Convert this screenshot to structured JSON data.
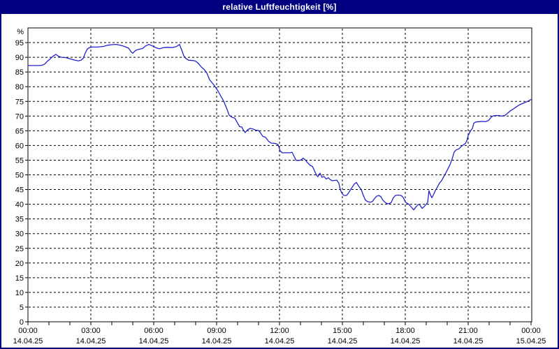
{
  "window": {
    "title": "relative Luftfeuchtigkeit [%]"
  },
  "colors": {
    "titlebar_bg": "#000080",
    "title_text": "#ffffff",
    "frame_border": "#000080",
    "background": "#ffffff",
    "plot_border": "#000000",
    "grid": "#000000",
    "line": "#2222cc",
    "tick_text": "#000000"
  },
  "chart_data": {
    "type": "line",
    "title": "relative Luftfeuchtigkeit [%]",
    "ylabel": "%",
    "unit_label": "%",
    "ylim": [
      0,
      100
    ],
    "ytick_step": 5,
    "ytick_max_labeled": 95,
    "grid": "dashed",
    "legend": "none",
    "x_hours_range": [
      0,
      24
    ],
    "x_minor_tick_every_hours": 1,
    "x_major_ticks": [
      {
        "hour": 0,
        "time": "00:00",
        "date": "14.04.25"
      },
      {
        "hour": 3,
        "time": "03:00",
        "date": "14.04.25"
      },
      {
        "hour": 6,
        "time": "06:00",
        "date": "14.04.25"
      },
      {
        "hour": 9,
        "time": "09:00",
        "date": "14.04.25"
      },
      {
        "hour": 12,
        "time": "12:00",
        "date": "14.04.25"
      },
      {
        "hour": 15,
        "time": "15:00",
        "date": "14.04.25"
      },
      {
        "hour": 18,
        "time": "18:00",
        "date": "14.04.25"
      },
      {
        "hour": 21,
        "time": "21:00",
        "date": "14.04.25"
      },
      {
        "hour": 24,
        "time": "00:00",
        "date": "15.04.25"
      }
    ],
    "series": [
      {
        "name": "relative Luftfeuchtigkeit",
        "unit": "%",
        "points": [
          [
            0.0,
            87.2
          ],
          [
            0.27,
            87.2
          ],
          [
            0.53,
            87.2
          ],
          [
            0.67,
            87.3
          ],
          [
            0.8,
            87.7
          ],
          [
            0.93,
            88.7
          ],
          [
            1.07,
            89.5
          ],
          [
            1.2,
            90.4
          ],
          [
            1.33,
            91.0
          ],
          [
            1.47,
            90.3
          ],
          [
            1.6,
            90.0
          ],
          [
            1.8,
            89.9
          ],
          [
            2.0,
            89.5
          ],
          [
            2.2,
            89.1
          ],
          [
            2.4,
            88.8
          ],
          [
            2.53,
            89.0
          ],
          [
            2.63,
            89.6
          ],
          [
            2.73,
            91.4
          ],
          [
            2.83,
            92.8
          ],
          [
            2.93,
            93.3
          ],
          [
            3.07,
            93.5
          ],
          [
            3.33,
            93.5
          ],
          [
            3.6,
            93.7
          ],
          [
            3.8,
            94.1
          ],
          [
            4.0,
            94.3
          ],
          [
            4.2,
            94.4
          ],
          [
            4.4,
            94.1
          ],
          [
            4.6,
            93.7
          ],
          [
            4.8,
            93.1
          ],
          [
            4.93,
            91.8
          ],
          [
            5.0,
            91.4
          ],
          [
            5.13,
            92.3
          ],
          [
            5.27,
            92.7
          ],
          [
            5.47,
            93.0
          ],
          [
            5.6,
            93.8
          ],
          [
            5.77,
            94.4
          ],
          [
            5.93,
            93.9
          ],
          [
            6.1,
            93.3
          ],
          [
            6.27,
            92.9
          ],
          [
            6.47,
            93.3
          ],
          [
            6.67,
            93.4
          ],
          [
            6.87,
            93.3
          ],
          [
            7.07,
            93.6
          ],
          [
            7.23,
            94.4
          ],
          [
            7.33,
            92.6
          ],
          [
            7.43,
            90.6
          ],
          [
            7.53,
            89.6
          ],
          [
            7.67,
            89.0
          ],
          [
            7.87,
            88.9
          ],
          [
            8.0,
            88.7
          ],
          [
            8.13,
            87.9
          ],
          [
            8.27,
            86.7
          ],
          [
            8.4,
            85.9
          ],
          [
            8.53,
            84.7
          ],
          [
            8.67,
            82.3
          ],
          [
            8.8,
            81.2
          ],
          [
            8.93,
            80.0
          ],
          [
            9.07,
            78.5
          ],
          [
            9.2,
            76.8
          ],
          [
            9.33,
            75.2
          ],
          [
            9.47,
            72.8
          ],
          [
            9.6,
            70.3
          ],
          [
            9.73,
            69.6
          ],
          [
            9.87,
            69.3
          ],
          [
            10.0,
            67.6
          ],
          [
            10.1,
            66.4
          ],
          [
            10.2,
            66.3
          ],
          [
            10.3,
            65.0
          ],
          [
            10.37,
            64.4
          ],
          [
            10.47,
            65.3
          ],
          [
            10.6,
            65.8
          ],
          [
            10.73,
            65.6
          ],
          [
            10.87,
            65.2
          ],
          [
            11.0,
            65.1
          ],
          [
            11.1,
            64.2
          ],
          [
            11.2,
            63.1
          ],
          [
            11.33,
            62.8
          ],
          [
            11.47,
            61.5
          ],
          [
            11.6,
            60.8
          ],
          [
            11.8,
            60.7
          ],
          [
            11.93,
            60.3
          ],
          [
            12.03,
            58.2
          ],
          [
            12.13,
            57.5
          ],
          [
            12.33,
            57.5
          ],
          [
            12.5,
            57.5
          ],
          [
            12.6,
            57.7
          ],
          [
            12.7,
            56.2
          ],
          [
            12.8,
            54.9
          ],
          [
            12.93,
            54.9
          ],
          [
            13.03,
            55.1
          ],
          [
            13.13,
            55.7
          ],
          [
            13.23,
            55.1
          ],
          [
            13.33,
            54.2
          ],
          [
            13.47,
            53.2
          ],
          [
            13.57,
            52.9
          ],
          [
            13.67,
            51.4
          ],
          [
            13.77,
            49.8
          ],
          [
            13.83,
            49.4
          ],
          [
            13.93,
            50.6
          ],
          [
            14.03,
            49.2
          ],
          [
            14.13,
            49.4
          ],
          [
            14.23,
            48.6
          ],
          [
            14.33,
            49.0
          ],
          [
            14.43,
            48.3
          ],
          [
            14.53,
            48.0
          ],
          [
            14.63,
            48.1
          ],
          [
            14.73,
            48.2
          ],
          [
            14.83,
            47.2
          ],
          [
            14.9,
            45.0
          ],
          [
            14.97,
            43.8
          ],
          [
            15.07,
            43.0
          ],
          [
            15.2,
            43.0
          ],
          [
            15.3,
            43.9
          ],
          [
            15.43,
            45.4
          ],
          [
            15.57,
            46.9
          ],
          [
            15.67,
            47.4
          ],
          [
            15.77,
            46.2
          ],
          [
            15.9,
            45.0
          ],
          [
            16.0,
            43.0
          ],
          [
            16.1,
            41.4
          ],
          [
            16.2,
            40.9
          ],
          [
            16.33,
            40.7
          ],
          [
            16.43,
            40.9
          ],
          [
            16.53,
            41.9
          ],
          [
            16.63,
            42.7
          ],
          [
            16.73,
            43.0
          ],
          [
            16.83,
            42.6
          ],
          [
            16.93,
            41.4
          ],
          [
            17.03,
            40.7
          ],
          [
            17.13,
            40.2
          ],
          [
            17.23,
            40.2
          ],
          [
            17.33,
            40.6
          ],
          [
            17.43,
            42.2
          ],
          [
            17.53,
            43.0
          ],
          [
            17.67,
            43.1
          ],
          [
            17.8,
            43.0
          ],
          [
            17.9,
            42.3
          ],
          [
            18.0,
            40.8
          ],
          [
            18.07,
            40.4
          ],
          [
            18.17,
            40.0
          ],
          [
            18.27,
            39.2
          ],
          [
            18.4,
            38.1
          ],
          [
            18.5,
            39.0
          ],
          [
            18.6,
            39.8
          ],
          [
            18.67,
            40.0
          ],
          [
            18.73,
            39.4
          ],
          [
            18.8,
            38.6
          ],
          [
            18.9,
            39.2
          ],
          [
            19.0,
            40.0
          ],
          [
            19.07,
            40.7
          ],
          [
            19.13,
            44.6
          ],
          [
            19.2,
            43.2
          ],
          [
            19.27,
            42.2
          ],
          [
            19.33,
            43.0
          ],
          [
            19.43,
            44.6
          ],
          [
            19.53,
            45.8
          ],
          [
            19.63,
            47.2
          ],
          [
            19.73,
            48.0
          ],
          [
            19.83,
            49.3
          ],
          [
            19.93,
            50.6
          ],
          [
            20.03,
            52.0
          ],
          [
            20.13,
            53.4
          ],
          [
            20.23,
            55.3
          ],
          [
            20.33,
            57.7
          ],
          [
            20.43,
            58.5
          ],
          [
            20.57,
            58.9
          ],
          [
            20.67,
            59.7
          ],
          [
            20.77,
            60.2
          ],
          [
            20.87,
            60.7
          ],
          [
            20.93,
            61.5
          ],
          [
            21.0,
            63.3
          ],
          [
            21.1,
            64.8
          ],
          [
            21.2,
            65.8
          ],
          [
            21.27,
            67.6
          ],
          [
            21.37,
            68.0
          ],
          [
            21.53,
            68.1
          ],
          [
            21.7,
            68.2
          ],
          [
            21.83,
            68.1
          ],
          [
            21.97,
            68.5
          ],
          [
            22.1,
            69.6
          ],
          [
            22.2,
            70.1
          ],
          [
            22.33,
            70.2
          ],
          [
            22.47,
            70.2
          ],
          [
            22.57,
            70.0
          ],
          [
            22.67,
            70.1
          ],
          [
            22.77,
            70.3
          ],
          [
            22.87,
            70.9
          ],
          [
            23.0,
            71.7
          ],
          [
            23.13,
            72.3
          ],
          [
            23.27,
            73.0
          ],
          [
            23.4,
            73.6
          ],
          [
            23.53,
            74.1
          ],
          [
            23.67,
            74.5
          ],
          [
            23.8,
            74.9
          ],
          [
            23.93,
            75.4
          ],
          [
            24.0,
            75.6
          ]
        ]
      }
    ]
  }
}
